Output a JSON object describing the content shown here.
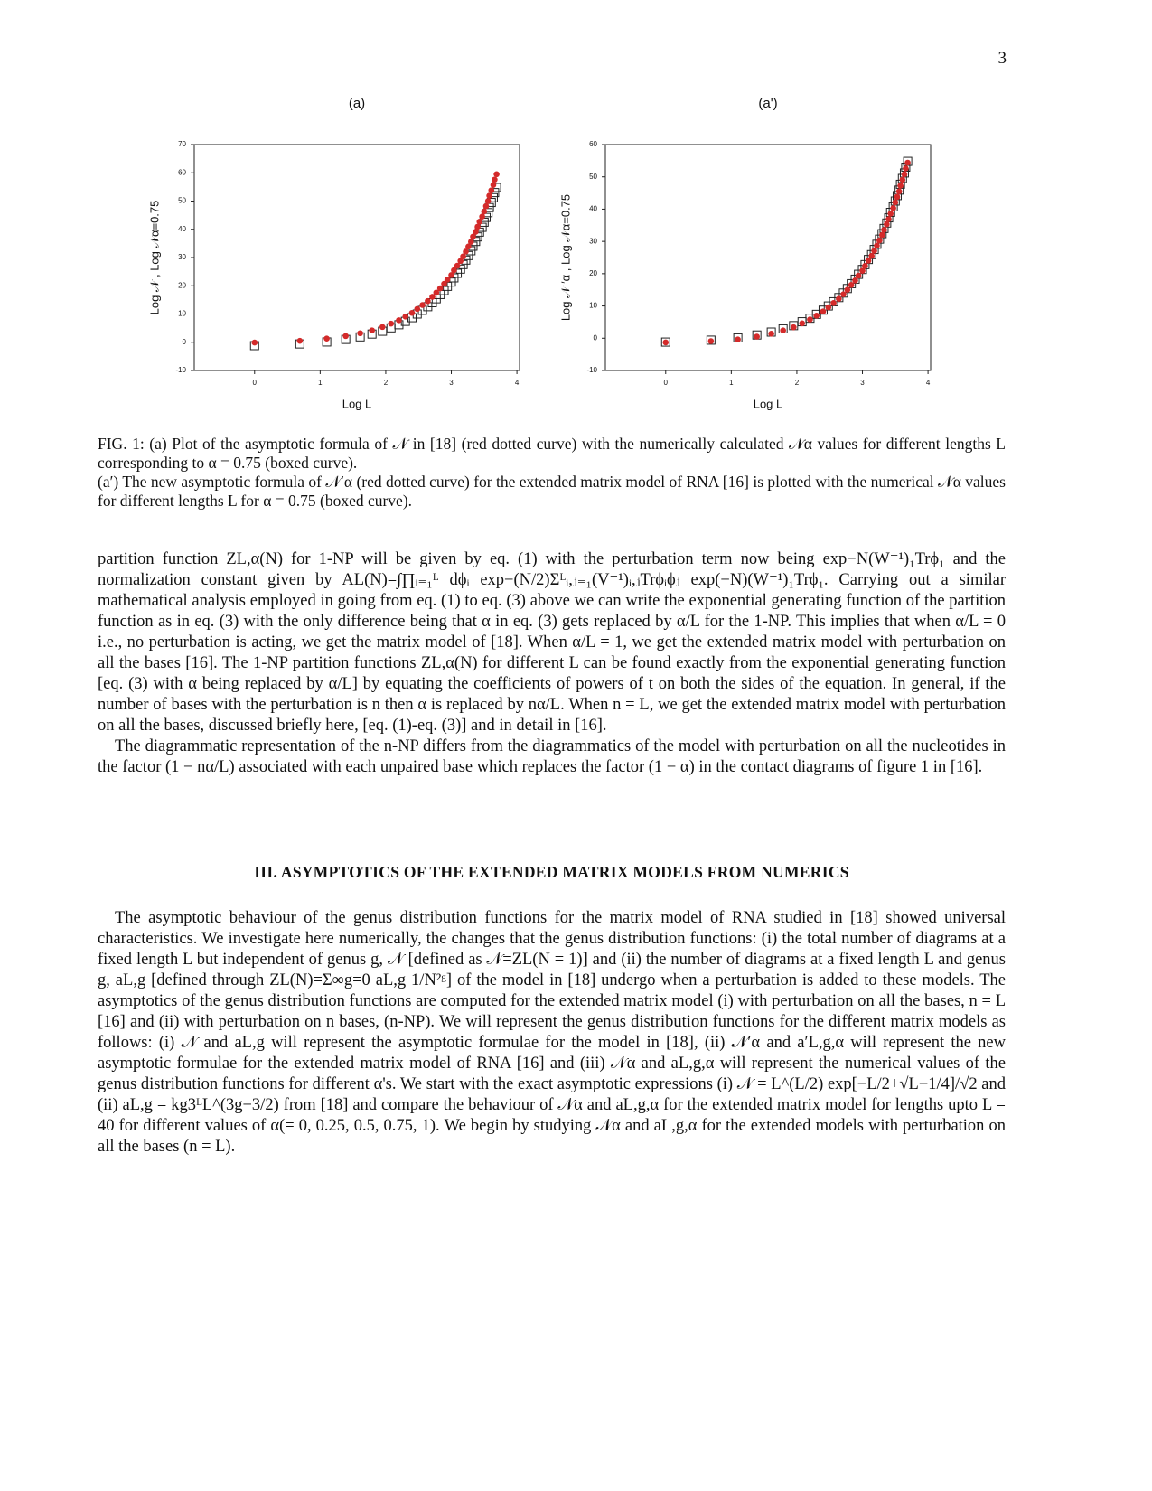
{
  "page_number": "3",
  "chart_data": [
    {
      "type": "scatter",
      "title": "(a)",
      "xlabel": "Log L",
      "ylabel": "Log 𝒩 , Log 𝒩α=0.75",
      "x": [
        0,
        0.69,
        1.1,
        1.39,
        1.61,
        1.79,
        1.95,
        2.08,
        2.2,
        2.3,
        2.4,
        2.48,
        2.56,
        2.64,
        2.71,
        2.77,
        2.83,
        2.89,
        2.94,
        3.0,
        3.04,
        3.09,
        3.14,
        3.18,
        3.22,
        3.26,
        3.3,
        3.33,
        3.37,
        3.4,
        3.43,
        3.47,
        3.5,
        3.53,
        3.56,
        3.58,
        3.61,
        3.64,
        3.66,
        3.69
      ],
      "series": [
        {
          "marker": "square",
          "color": "#222222",
          "values": [
            -1.2,
            -0.6,
            0.1,
            1.0,
            1.9,
            2.9,
            3.9,
            5.1,
            6.2,
            7.4,
            8.7,
            10.0,
            11.3,
            12.6,
            14.0,
            15.4,
            16.9,
            18.3,
            19.8,
            21.3,
            22.8,
            24.4,
            25.9,
            27.5,
            29.1,
            30.7,
            32.4,
            34.0,
            35.7,
            37.3,
            39.0,
            40.7,
            42.5,
            44.2,
            45.9,
            47.7,
            49.5,
            51.2,
            53.0,
            54.8
          ]
        },
        {
          "marker": "circle",
          "color": "#d42a2a",
          "values": [
            -0.1,
            0.5,
            1.3,
            2.2,
            3.2,
            4.2,
            5.4,
            6.6,
            7.8,
            9.1,
            10.4,
            11.8,
            13.2,
            14.6,
            16.1,
            17.6,
            19.1,
            20.7,
            22.2,
            23.8,
            25.5,
            27.1,
            28.8,
            30.4,
            32.1,
            33.9,
            35.6,
            37.4,
            39.1,
            40.9,
            42.7,
            44.5,
            46.3,
            48.2,
            50.0,
            51.9,
            53.8,
            55.7,
            57.6,
            59.5
          ]
        }
      ],
      "xlim": [
        -0.92,
        4.04
      ],
      "xticks": [
        0,
        1,
        2,
        3,
        4
      ],
      "ylim": [
        -10,
        70
      ],
      "yticks": [
        -10,
        0,
        10,
        20,
        30,
        40,
        50,
        60,
        70
      ],
      "grid": false
    },
    {
      "type": "scatter",
      "title": "(a')",
      "xlabel": "Log L",
      "ylabel": "Log 𝒩 ′α , Log 𝒩α=0.75",
      "x": [
        0,
        0.69,
        1.1,
        1.39,
        1.61,
        1.79,
        1.95,
        2.08,
        2.2,
        2.3,
        2.4,
        2.48,
        2.56,
        2.64,
        2.71,
        2.77,
        2.83,
        2.89,
        2.94,
        3.0,
        3.04,
        3.09,
        3.14,
        3.18,
        3.22,
        3.26,
        3.3,
        3.33,
        3.37,
        3.4,
        3.43,
        3.47,
        3.5,
        3.53,
        3.56,
        3.58,
        3.61,
        3.64,
        3.66,
        3.69
      ],
      "series": [
        {
          "marker": "square",
          "color": "#222222",
          "values": [
            -1.2,
            -0.6,
            0.1,
            1.0,
            1.9,
            2.9,
            3.9,
            5.1,
            6.2,
            7.4,
            8.7,
            10.0,
            11.3,
            12.6,
            14.0,
            15.4,
            16.9,
            18.3,
            19.8,
            21.3,
            22.8,
            24.4,
            25.9,
            27.5,
            29.1,
            30.7,
            32.4,
            34.0,
            35.7,
            37.3,
            39.0,
            40.7,
            42.5,
            44.2,
            45.9,
            47.7,
            49.5,
            51.2,
            53.0,
            54.8
          ]
        },
        {
          "marker": "circle",
          "color": "#d42a2a",
          "values": [
            -1.3,
            -0.9,
            -0.4,
            0.5,
            1.4,
            2.4,
            3.4,
            4.6,
            5.8,
            7.0,
            8.3,
            9.6,
            10.9,
            12.2,
            13.6,
            15.0,
            16.5,
            17.9,
            19.4,
            20.9,
            22.4,
            24.0,
            25.5,
            27.1,
            28.7,
            30.3,
            32.0,
            33.6,
            35.3,
            36.9,
            38.6,
            40.3,
            42.1,
            43.8,
            45.5,
            47.3,
            49.1,
            50.8,
            52.6,
            54.4
          ]
        }
      ],
      "xlim": [
        -0.92,
        4.04
      ],
      "xticks": [
        0,
        1,
        2,
        3,
        4
      ],
      "ylim": [
        -10,
        60
      ],
      "yticks": [
        -10,
        0,
        10,
        20,
        30,
        40,
        50,
        60
      ],
      "grid": false
    }
  ],
  "caption": [
    "FIG. 1: (a) Plot of the asymptotic formula of 𝒩 in [18] (red dotted curve) with the numerically calculated 𝒩α values for different lengths L corresponding to α = 0.75 (boxed curve).",
    "(a′) The new asymptotic formula of 𝒩′α (red dotted curve) for the extended matrix model of RNA [16] is plotted with the numerical 𝒩α values for different lengths L for α = 0.75 (boxed curve)."
  ],
  "paragraphs": [
    "partition function ZL,α(N) for 1-NP will be given by eq. (1) with the perturbation term now being exp−N(W⁻¹)₁Trϕ₁ and the normalization constant given by AL(N)=∫∏ᵢ₌₁ᴸ dϕᵢ exp−(N/2)Σᴸᵢ,ⱼ₌₁(V⁻¹)ᵢ,ⱼTrϕᵢϕⱼ exp(−N)(W⁻¹)₁Trϕ₁. Carrying out a similar mathematical analysis employed in going from eq. (1) to eq. (3) above we can write the exponential generating function of the partition function as in eq. (3) with the only difference being that α in eq. (3) gets replaced by α/L for the 1-NP. This implies that when α/L = 0 i.e., no perturbation is acting, we get the matrix model of [18]. When α/L = 1, we get the extended matrix model with perturbation on all the bases [16]. The 1-NP partition functions ZL,α(N) for different L can be found exactly from the exponential generating function [eq. (3) with α being replaced by α/L] by equating the coefficients of powers of t on both the sides of the equation. In general, if the number of bases with the perturbation is n then α is replaced by nα/L. When n = L, we get the extended matrix model with perturbation on all the bases, discussed briefly here, [eq. (1)-eq. (3)] and in detail in [16].",
    "The diagrammatic representation of the n-NP differs from the diagrammatics of the model with perturbation on all the nucleotides in the factor (1 − nα/L) associated with each unpaired base which replaces the factor (1 − α) in the contact diagrams of figure 1 in [16]."
  ],
  "section": {
    "heading": "III.   ASYMPTOTICS OF THE EXTENDED MATRIX MODELS FROM NUMERICS",
    "paragraphs": [
      "The asymptotic behaviour of the genus distribution functions for the matrix model of RNA studied in [18] showed universal characteristics. We investigate here numerically, the changes that the genus distribution functions: (i) the total number of diagrams at a fixed length L but independent of genus g, 𝒩 [defined as 𝒩=ZL(N = 1)] and (ii) the number of diagrams at a fixed length L and genus g, aL,g [defined through ZL(N)=Σ∞g=0 aL,g 1/N²ᵍ] of the model in [18] undergo when a perturbation is added to these models. The asymptotics of the genus distribution functions are computed for the extended matrix model (i) with perturbation on all the bases, n = L [16] and (ii) with perturbation on n bases, (n-NP). We will represent the genus distribution functions for the different matrix models as follows: (i) 𝒩 and aL,g will represent the asymptotic formulae for the model in [18], (ii) 𝒩′α and a′L,g,α will represent the new asymptotic formulae for the extended matrix model of RNA [16] and (iii) 𝒩α and aL,g,α will represent the numerical values of the genus distribution functions for different α's. We start with the exact asymptotic expressions (i) 𝒩 = L^(L/2) exp[−L/2+√L−1/4]/√2 and (ii) aL,g = kg3ᴸL^(3g−3/2) from [18] and compare the behaviour of 𝒩α and aL,g,α for the extended matrix model for lengths upto L = 40 for different values of α(= 0, 0.25, 0.5, 0.75, 1). We begin by studying 𝒩α and aL,g,α for the extended models with perturbation on all the bases (n = L)."
    ]
  }
}
